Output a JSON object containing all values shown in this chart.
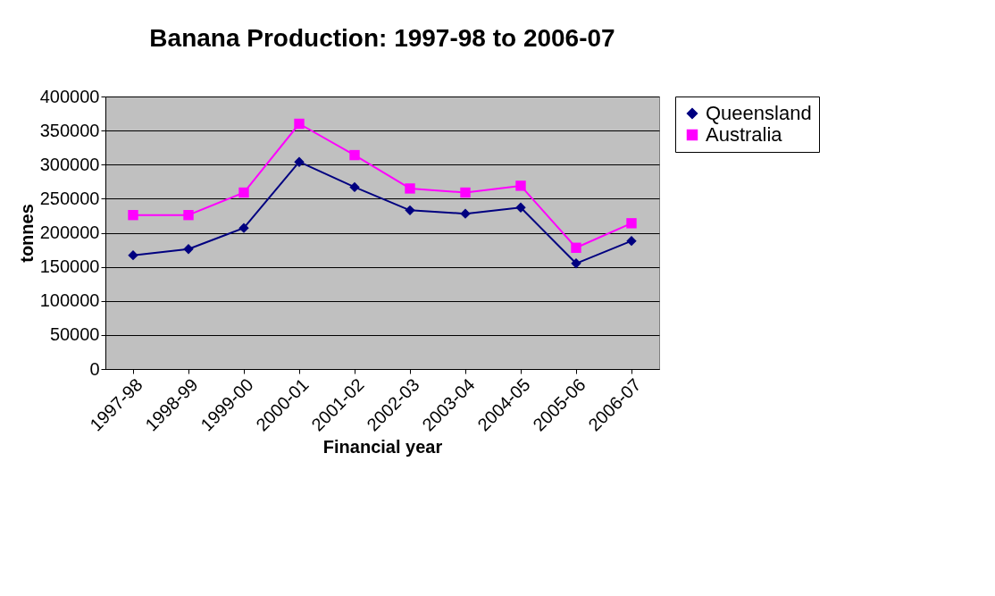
{
  "chart_data": {
    "type": "line",
    "title": "Banana Production: 1997-98 to 2006-07",
    "xlabel": "Financial year",
    "ylabel": "tonnes",
    "categories": [
      "1997-98",
      "1998-99",
      "1999-00",
      "2000-01",
      "2001-02",
      "2002-03",
      "2003-04",
      "2004-05",
      "2005-06",
      "2006-07"
    ],
    "series": [
      {
        "name": "Queensland",
        "color": "#000080",
        "marker": "diamond",
        "values": [
          167000,
          176000,
          207000,
          304000,
          267000,
          233000,
          228000,
          237000,
          155000,
          188000
        ]
      },
      {
        "name": "Australia",
        "color": "#ff00ff",
        "marker": "square",
        "values": [
          226000,
          226000,
          259000,
          360000,
          314000,
          265000,
          259000,
          269000,
          178000,
          214000
        ]
      }
    ],
    "ylim": [
      0,
      400000
    ],
    "yticks": [
      0,
      50000,
      100000,
      150000,
      200000,
      250000,
      300000,
      350000,
      400000
    ],
    "grid": "y",
    "legend": "right",
    "line_style": "solid"
  }
}
